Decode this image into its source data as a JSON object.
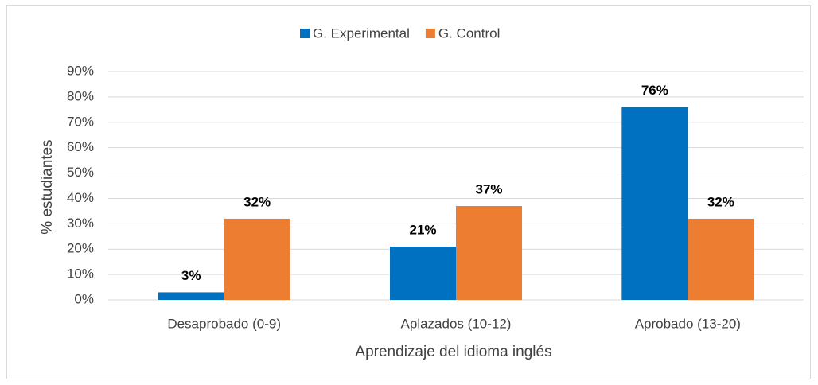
{
  "chart_data": {
    "type": "bar",
    "x_label": "Aprendizaje del idioma inglés",
    "y_label": "% estudiantes",
    "categories": [
      "Desaprobado (0-9)",
      "Aplazados (10-12)",
      "Aprobado (13-20)"
    ],
    "series": [
      {
        "name": "G. Experimental",
        "color": "#0070c0",
        "values": [
          3,
          21,
          76
        ],
        "value_labels": [
          "3%",
          "21%",
          "76%"
        ]
      },
      {
        "name": "G. Control",
        "color": "#ed7d31",
        "values": [
          32,
          37,
          32
        ],
        "value_labels": [
          "32%",
          "37%",
          "32%"
        ]
      }
    ],
    "ylim": [
      0,
      90
    ],
    "yticks": [
      {
        "value": 0,
        "label": "0%"
      },
      {
        "value": 10,
        "label": "10%"
      },
      {
        "value": 20,
        "label": "20%"
      },
      {
        "value": 30,
        "label": "30%"
      },
      {
        "value": 40,
        "label": "40%"
      },
      {
        "value": 50,
        "label": "50%"
      },
      {
        "value": 60,
        "label": "60%"
      },
      {
        "value": 70,
        "label": "70%"
      },
      {
        "value": 80,
        "label": "80%"
      },
      {
        "value": 90,
        "label": "90%"
      }
    ],
    "grid": true,
    "legend": "top"
  }
}
